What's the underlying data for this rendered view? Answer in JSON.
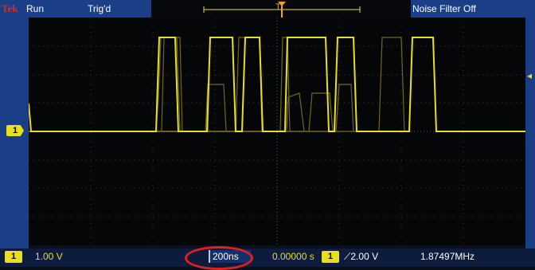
{
  "status": {
    "brand": "Tek",
    "run_state": "Run",
    "trigger_state": "Trig'd",
    "noise_filter": "Noise Filter Off"
  },
  "markers": {
    "channel_1": "1",
    "trigger_position": "T",
    "trigger_level": "◂"
  },
  "readouts": {
    "channel_badge": "1",
    "channel_scale": "1.00 V",
    "timebase": "200ns",
    "position": "0.00000 s",
    "trigger_source": "1",
    "trigger_slope_level": "⟋2.00 V",
    "frequency": "1.87497MHz"
  },
  "colors": {
    "trace": "#e8df20",
    "status_bar": "#1b3f86",
    "screen": "#050608",
    "highlight_ring": "#e02020",
    "trigger_marker": "#ff9a20"
  }
}
